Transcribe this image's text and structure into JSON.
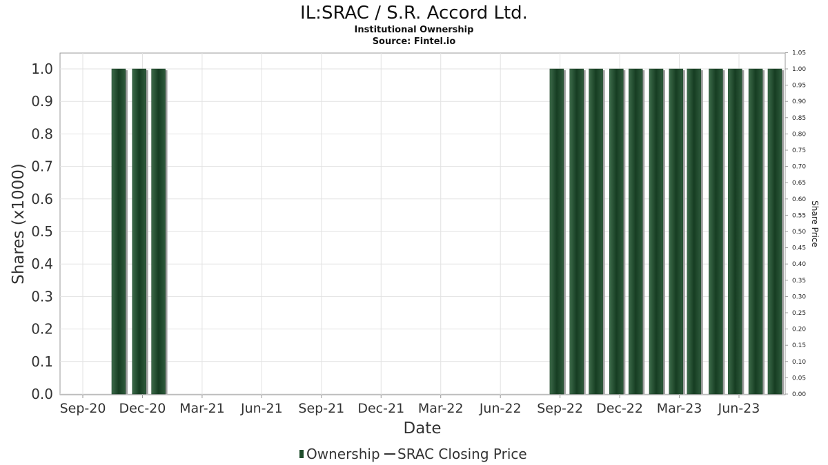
{
  "chart_data": {
    "type": "bar",
    "title": "IL:SRAC / S.R. Accord Ltd.",
    "subtitle_1": "Institutional Ownership",
    "subtitle_2": "Source: Fintel.io",
    "xlabel": "Date",
    "ylabel": "Shares (x1000)",
    "y2label": "Share Price",
    "ylim": [
      0,
      1.05
    ],
    "y2lim": [
      0,
      1.05
    ],
    "yticks": [
      "0.0",
      "0.1",
      "0.2",
      "0.3",
      "0.4",
      "0.5",
      "0.6",
      "0.7",
      "0.8",
      "0.9",
      "1.0"
    ],
    "y2ticks": [
      "0.00",
      "0.05",
      "0.10",
      "0.15",
      "0.20",
      "0.25",
      "0.30",
      "0.35",
      "0.40",
      "0.45",
      "0.50",
      "0.55",
      "0.60",
      "0.65",
      "0.70",
      "0.75",
      "0.80",
      "0.85",
      "0.90",
      "0.95",
      "1.00",
      "1.05"
    ],
    "xticks": [
      "Sep-20",
      "Dec-20",
      "Mar-21",
      "Jun-21",
      "Sep-21",
      "Dec-21",
      "Mar-22",
      "Jun-22",
      "Sep-22",
      "Dec-22",
      "Mar-23",
      "Jun-23"
    ],
    "grid": true,
    "legend_position": "bottom-center",
    "series": [
      {
        "name": "Ownership",
        "color": "#1e4d2b",
        "dates": [
          "2020-09-30",
          "2020-10-31",
          "2020-11-30",
          "2022-07-31",
          "2022-08-31",
          "2022-09-30",
          "2022-10-31",
          "2022-11-30",
          "2022-12-31",
          "2023-01-31",
          "2023-02-28",
          "2023-03-31",
          "2023-04-30",
          "2023-05-31",
          "2023-06-30"
        ],
        "values": [
          1.0,
          1.0,
          1.0,
          1.0,
          1.0,
          1.0,
          1.0,
          1.0,
          1.0,
          1.0,
          1.0,
          1.0,
          1.0,
          1.0,
          1.0
        ]
      },
      {
        "name": "SRAC Closing Price",
        "color": "#333333",
        "values": []
      }
    ]
  }
}
